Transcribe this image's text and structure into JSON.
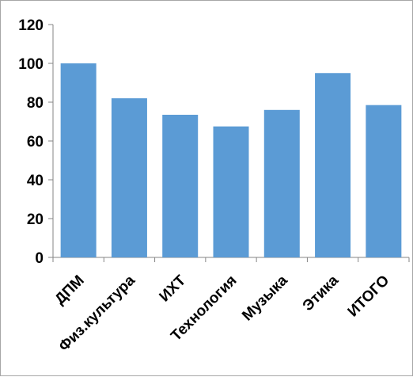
{
  "chart_data": {
    "type": "bar",
    "title": "",
    "xlabel": "",
    "ylabel": "",
    "categories": [
      "ДПМ",
      "Физ.культура",
      "ИХТ",
      "Технология",
      "Музыка",
      "Этика",
      "ИТОГО"
    ],
    "values": [
      100,
      82,
      73.5,
      67.5,
      76,
      95,
      78.5
    ],
    "ylim": [
      0,
      120
    ],
    "yticks": [
      0,
      20,
      40,
      60,
      80,
      100,
      120
    ],
    "ytick_labels": [
      "0",
      "20",
      "40",
      "60",
      "80",
      "100",
      "120"
    ],
    "grid": false,
    "legend": false,
    "bar_color": "#5b9bd5",
    "axis_color": "#868686"
  }
}
